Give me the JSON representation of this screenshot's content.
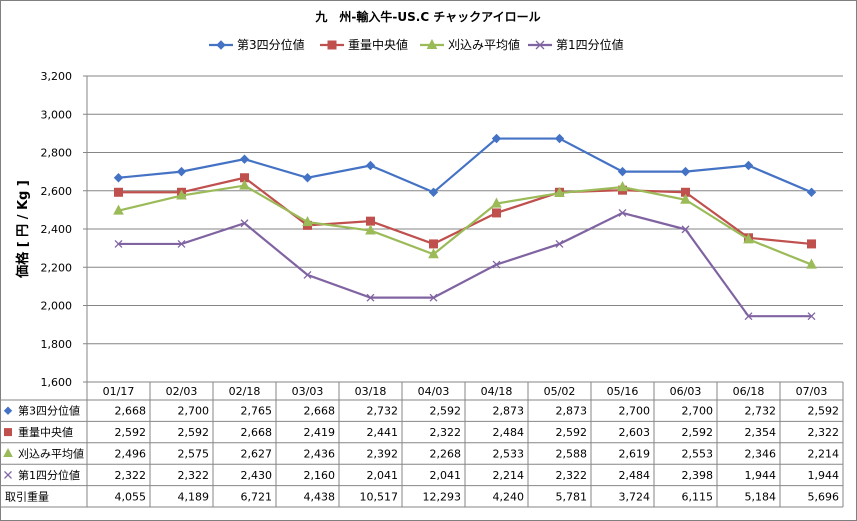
{
  "chart_data": {
    "type": "line",
    "title": "九　州-輸入牛-US.C チャックアイロール",
    "ylabel": "価格 [ 円 / Kg ]",
    "xlabel": "",
    "ylim": [
      1600,
      3200
    ],
    "ytick_step": 200,
    "grid": true,
    "legend_placement": "top",
    "categories": [
      "01/17",
      "02/03",
      "02/18",
      "03/03",
      "03/18",
      "04/03",
      "04/18",
      "05/02",
      "05/16",
      "06/03",
      "06/18",
      "07/03"
    ],
    "series": [
      {
        "name": "第3四分位値",
        "color": "#4472C4",
        "marker": "diamond",
        "values": [
          2668,
          2700,
          2765,
          2668,
          2732,
          2592,
          2873,
          2873,
          2700,
          2700,
          2732,
          2592
        ]
      },
      {
        "name": "重量中央値",
        "color": "#C0504D",
        "marker": "square",
        "values": [
          2592,
          2592,
          2668,
          2419,
          2441,
          2322,
          2484,
          2592,
          2603,
          2592,
          2354,
          2322
        ]
      },
      {
        "name": "刈込み平均値",
        "color": "#9BBB59",
        "marker": "triangle",
        "values": [
          2496,
          2575,
          2627,
          2436,
          2392,
          2268,
          2533,
          2588,
          2619,
          2553,
          2346,
          2214
        ]
      },
      {
        "name": "第1四分位値",
        "color": "#8064A2",
        "marker": "x",
        "values": [
          2322,
          2322,
          2430,
          2160,
          2041,
          2041,
          2214,
          2322,
          2484,
          2398,
          1944,
          1944
        ]
      }
    ],
    "table_extra_rows": [
      {
        "label": "取引重量",
        "values": [
          "4,055",
          "4,189",
          "6,721",
          "4,438",
          "10,517",
          "12,293",
          "4,240",
          "5,781",
          "3,724",
          "6,115",
          "5,184",
          "5,696"
        ]
      }
    ]
  }
}
